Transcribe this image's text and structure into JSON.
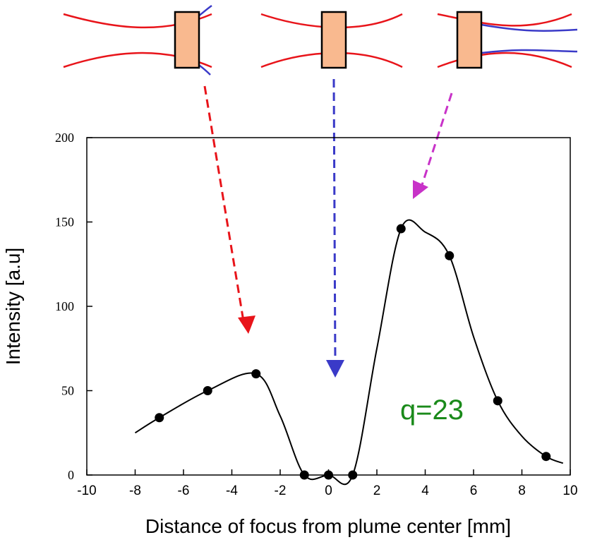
{
  "chart_data": {
    "type": "scatter",
    "xlabel": "Distance of focus from plume center [mm]",
    "ylabel": "Intensity [a.u]",
    "annotation": "q=23",
    "xlim": [
      -10,
      10
    ],
    "xticks": [
      -10,
      -8,
      -6,
      -4,
      -2,
      0,
      2,
      4,
      6,
      8,
      10
    ],
    "ylim": [
      0,
      200
    ],
    "yticks": [
      0,
      50,
      100,
      150,
      200
    ],
    "series": [
      {
        "style": "line",
        "color": "#000000",
        "x": [
          -8,
          -7,
          -5,
          -3,
          -2,
          -1,
          0,
          1,
          2,
          3,
          4,
          5,
          6,
          7,
          8,
          9,
          9.7
        ],
        "values": [
          25,
          34,
          50,
          60,
          35,
          0,
          0,
          0,
          75,
          146,
          144,
          130,
          82,
          44,
          23,
          11,
          7
        ]
      },
      {
        "style": "marker",
        "color": "#000000",
        "x": [
          -7,
          -5,
          -3,
          -1,
          0,
          1,
          3,
          5,
          7,
          9
        ],
        "values": [
          34,
          50,
          60,
          0,
          0,
          0,
          146,
          130,
          44,
          11
        ]
      }
    ]
  }
}
